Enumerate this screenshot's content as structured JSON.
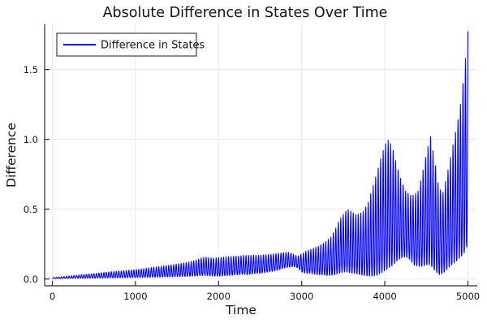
{
  "figure": {
    "title": "Absolute Difference in States Over Time"
  },
  "colors": {
    "line": "#0000ff",
    "grid": "#e9e9e9",
    "axis": "#2a2a2a",
    "text": "#141414",
    "background": "#ffffff",
    "legend_border": "#1a1a1a",
    "legend_fill": "#ffffff"
  },
  "chart_data": {
    "type": "line",
    "title": "Absolute Difference in States Over Time",
    "xlabel": "Time",
    "ylabel": "Difference",
    "xlim": [
      -93,
      5112
    ],
    "ylim": [
      -0.049,
      1.823
    ],
    "xticks": [
      0,
      1000,
      2000,
      3000,
      4000,
      5000
    ],
    "xtick_labels": [
      "0",
      "1000",
      "2000",
      "3000",
      "4000",
      "5000"
    ],
    "yticks": [
      0.0,
      0.5,
      1.0,
      1.5
    ],
    "ytick_labels": [
      "0.0",
      "0.5",
      "1.0",
      "1.5"
    ],
    "grid": true,
    "legend_position": "top-left",
    "series": [
      {
        "name": "Difference in States",
        "color": "#0000ff",
        "description": "Rapidly oscillating absolute difference between two trajectories; amplitude envelope grows over time, peaking near 1.0 at t=4050 and t=4550, dipping near t=4650, then climbing to 1.77 at t=5000.",
        "oscillation": {
          "period": 30,
          "samples_per_cycle": 12,
          "sharpness": 1.5,
          "phase_deg": -150
        },
        "envelope": {
          "t_step": 50,
          "times": [
            0,
            50,
            100,
            150,
            200,
            250,
            300,
            350,
            400,
            450,
            500,
            550,
            600,
            650,
            700,
            750,
            800,
            850,
            900,
            950,
            1000,
            1050,
            1100,
            1150,
            1200,
            1250,
            1300,
            1350,
            1400,
            1450,
            1500,
            1550,
            1600,
            1650,
            1700,
            1750,
            1800,
            1850,
            1900,
            1950,
            2000,
            2050,
            2100,
            2150,
            2200,
            2250,
            2300,
            2350,
            2400,
            2450,
            2500,
            2550,
            2600,
            2650,
            2700,
            2750,
            2800,
            2850,
            2900,
            2950,
            3000,
            3050,
            3100,
            3150,
            3200,
            3250,
            3300,
            3350,
            3400,
            3450,
            3500,
            3550,
            3600,
            3650,
            3700,
            3750,
            3800,
            3850,
            3900,
            3950,
            4000,
            4050,
            4100,
            4150,
            4200,
            4250,
            4300,
            4350,
            4400,
            4450,
            4500,
            4550,
            4600,
            4650,
            4700,
            4750,
            4800,
            4850,
            4900,
            4950,
            5000
          ],
          "upper": [
            0.01,
            0.012,
            0.015,
            0.018,
            0.021,
            0.024,
            0.027,
            0.03,
            0.033,
            0.036,
            0.039,
            0.042,
            0.045,
            0.048,
            0.051,
            0.054,
            0.056,
            0.059,
            0.061,
            0.064,
            0.066,
            0.07,
            0.074,
            0.078,
            0.082,
            0.086,
            0.09,
            0.094,
            0.098,
            0.102,
            0.106,
            0.111,
            0.116,
            0.122,
            0.13,
            0.14,
            0.152,
            0.156,
            0.15,
            0.149,
            0.153,
            0.155,
            0.158,
            0.16,
            0.163,
            0.164,
            0.168,
            0.168,
            0.169,
            0.169,
            0.17,
            0.172,
            0.175,
            0.178,
            0.182,
            0.186,
            0.19,
            0.19,
            0.178,
            0.162,
            0.18,
            0.198,
            0.21,
            0.222,
            0.235,
            0.252,
            0.272,
            0.3,
            0.35,
            0.42,
            0.462,
            0.5,
            0.48,
            0.46,
            0.468,
            0.49,
            0.55,
            0.65,
            0.75,
            0.86,
            0.96,
            1.0,
            0.92,
            0.8,
            0.7,
            0.63,
            0.6,
            0.6,
            0.63,
            0.75,
            0.9,
            1.02,
            0.85,
            0.65,
            0.62,
            0.75,
            0.9,
            1.05,
            1.2,
            1.45,
            1.773
          ],
          "lower": [
            0.002,
            0.003,
            0.003,
            0.004,
            0.004,
            0.005,
            0.005,
            0.005,
            0.006,
            0.006,
            0.006,
            0.007,
            0.007,
            0.008,
            0.008,
            0.008,
            0.009,
            0.009,
            0.01,
            0.01,
            0.01,
            0.011,
            0.012,
            0.012,
            0.013,
            0.013,
            0.014,
            0.015,
            0.015,
            0.016,
            0.017,
            0.018,
            0.018,
            0.019,
            0.02,
            0.022,
            0.025,
            0.025,
            0.022,
            0.02,
            0.02,
            0.022,
            0.025,
            0.025,
            0.03,
            0.03,
            0.035,
            0.03,
            0.035,
            0.04,
            0.04,
            0.045,
            0.05,
            0.055,
            0.06,
            0.07,
            0.08,
            0.085,
            0.09,
            0.08,
            0.05,
            0.04,
            0.04,
            0.035,
            0.03,
            0.03,
            0.025,
            0.025,
            0.03,
            0.04,
            0.05,
            0.05,
            0.04,
            0.04,
            0.03,
            0.025,
            0.02,
            0.02,
            0.025,
            0.04,
            0.06,
            0.08,
            0.1,
            0.13,
            0.15,
            0.16,
            0.14,
            0.1,
            0.09,
            0.09,
            0.1,
            0.1,
            0.06,
            0.03,
            0.04,
            0.07,
            0.1,
            0.12,
            0.15,
            0.18,
            0.25
          ]
        }
      }
    ]
  }
}
